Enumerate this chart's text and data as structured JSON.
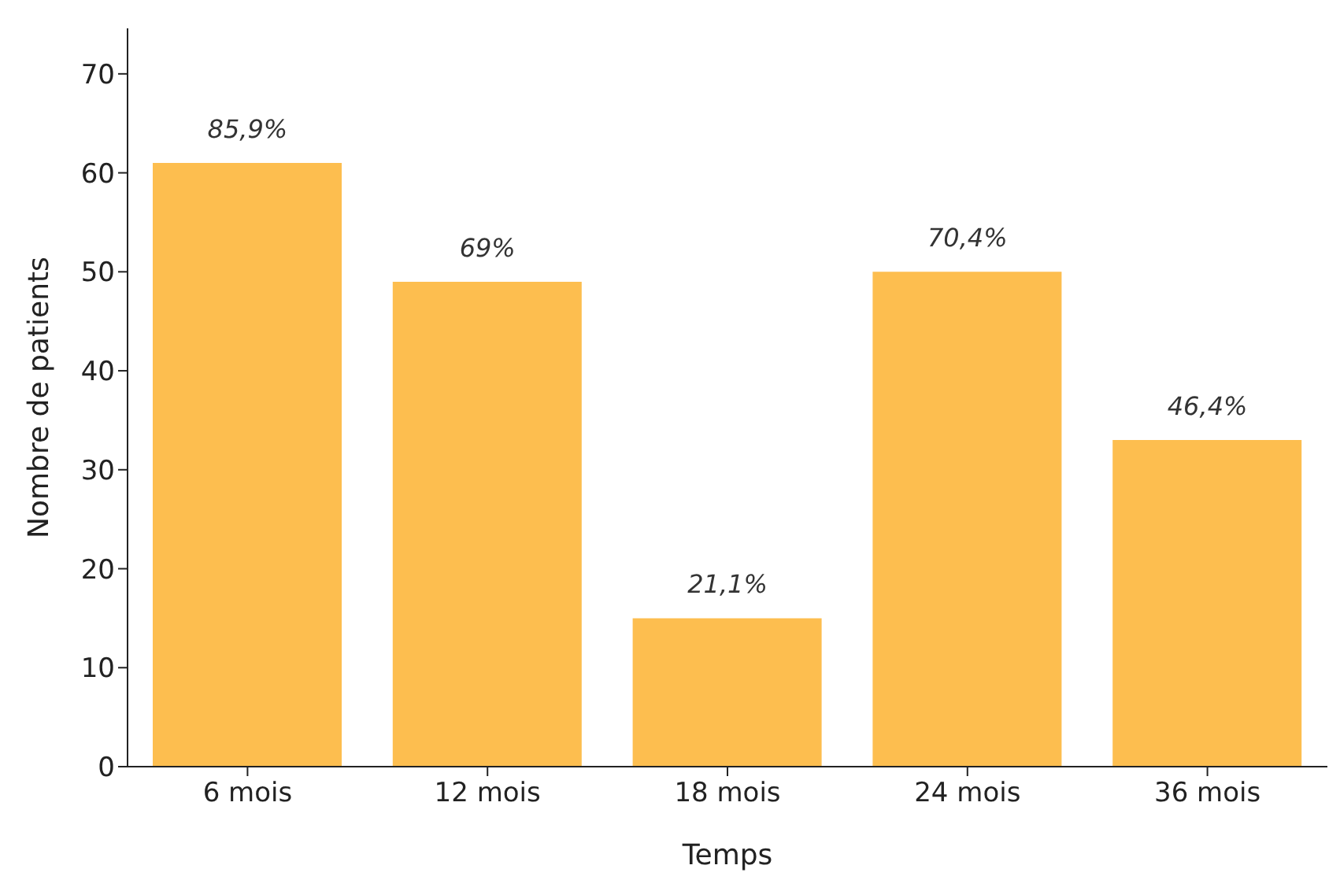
{
  "chart_data": {
    "type": "bar",
    "xlabel": "Temps",
    "ylabel": "Nombre de patients",
    "categories": [
      "6 mois",
      "12 mois",
      "18 mois",
      "24 mois",
      "36 mois"
    ],
    "values": [
      61,
      49,
      15,
      50,
      33
    ],
    "annotations": [
      {
        "text": "85,9%",
        "x": "6 mois",
        "y": 61
      },
      {
        "text": "69%",
        "x": "12 mois",
        "y": 49
      },
      {
        "text": "21,1%",
        "x": "18 mois",
        "y": 15
      },
      {
        "text": "70,4%",
        "x": "24 mois",
        "y": 50
      },
      {
        "text": "46,4%",
        "x": "36 mois",
        "y": 33
      }
    ],
    "color": "#fdbe4f",
    "ylim": [
      0,
      74.6
    ],
    "yticks": [
      0,
      10,
      20,
      30,
      40,
      50,
      60,
      70
    ],
    "grid": false,
    "legend": false
  }
}
